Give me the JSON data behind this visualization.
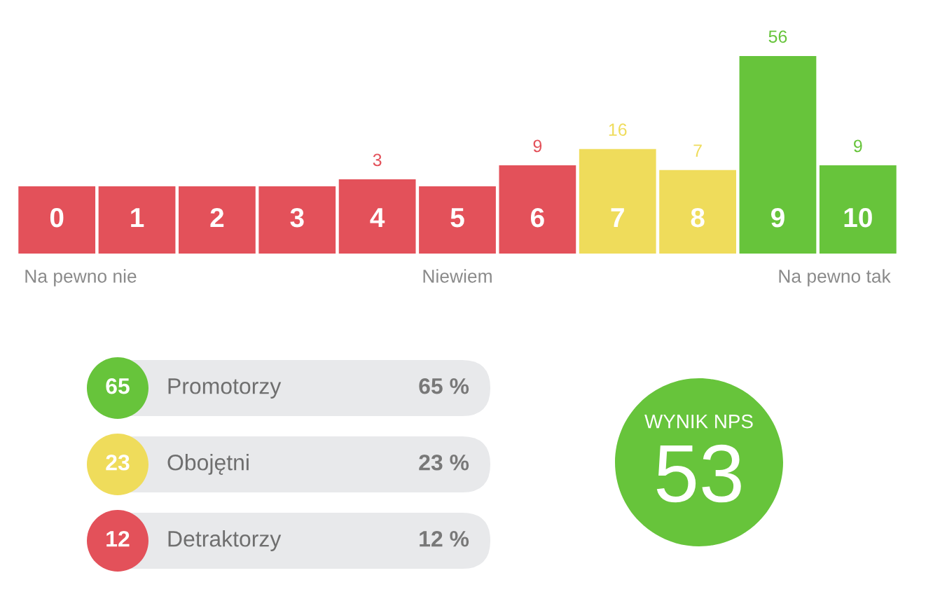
{
  "chart_data": [
    {
      "type": "bar",
      "categories": [
        "0",
        "1",
        "2",
        "3",
        "4",
        "5",
        "6",
        "7",
        "8",
        "9",
        "10"
      ],
      "values": [
        0,
        0,
        0,
        0,
        3,
        0,
        9,
        16,
        7,
        56,
        9
      ],
      "colors": [
        "#e3515a",
        "#e3515a",
        "#e3515a",
        "#e3515a",
        "#e3515a",
        "#e3515a",
        "#e3515a",
        "#efdc5b",
        "#efdc5b",
        "#67c43b",
        "#67c43b"
      ],
      "value_labels": [
        null,
        null,
        null,
        null,
        "3",
        null,
        "9",
        "16",
        "7",
        "56",
        "9"
      ],
      "annotations": [
        "Na pewno nie",
        "Niewiem",
        "Na pewno tak"
      ]
    },
    {
      "type": "other",
      "categories": [
        "Promotorzy",
        "Obojętni",
        "Detraktorzy"
      ],
      "values": [
        65,
        23,
        12
      ],
      "colors": [
        "#67c43b",
        "#efdc5b",
        "#e3515a"
      ],
      "data_labels": true,
      "annotations": [
        "65 %",
        "23 %",
        "12 %"
      ]
    },
    {
      "type": "other",
      "title": "WYNIK NPS",
      "values": [
        53
      ],
      "color": "#67c43b",
      "data_labels": true
    }
  ]
}
